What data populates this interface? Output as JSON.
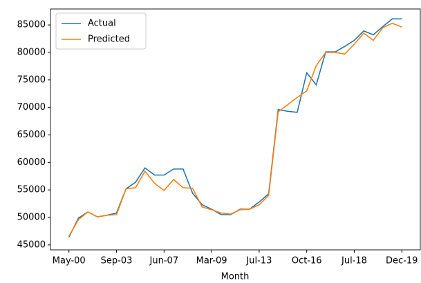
{
  "chart_data": {
    "type": "line",
    "xlabel": "Month",
    "categories": [
      "May-00",
      null,
      null,
      null,
      null,
      "Sep-03",
      null,
      null,
      null,
      null,
      "Jun-07",
      null,
      null,
      null,
      null,
      "Mar-09",
      null,
      null,
      null,
      null,
      "Jul-13",
      null,
      null,
      null,
      null,
      "Oct-16",
      null,
      null,
      null,
      null,
      "Jul-18",
      null,
      null,
      null,
      null,
      "Dec-19"
    ],
    "series": [
      {
        "name": "Actual",
        "color": "#1f77b4",
        "values": [
          46400,
          49900,
          51000,
          50100,
          50400,
          50800,
          55200,
          56400,
          59000,
          57700,
          57700,
          58800,
          58800,
          54400,
          52300,
          51500,
          50500,
          50500,
          51500,
          51500,
          52800,
          54300,
          69600,
          69300,
          69100,
          76300,
          74100,
          80100,
          80100,
          81100,
          82200,
          83900,
          83200,
          84700,
          86100,
          86100
        ]
      },
      {
        "name": "Predicted",
        "color": "#ff7f0e",
        "values": [
          46600,
          49600,
          51000,
          50100,
          50400,
          50500,
          55200,
          55400,
          58400,
          56200,
          54900,
          56900,
          55400,
          55300,
          51900,
          51400,
          50800,
          50600,
          51400,
          51500,
          52300,
          54000,
          69200,
          70500,
          71800,
          73000,
          77600,
          80000,
          80000,
          79700,
          81500,
          83500,
          82200,
          84500,
          85300,
          84600
        ]
      }
    ],
    "ylim": [
      44100,
      87900
    ],
    "yticks": [
      45000,
      50000,
      55000,
      60000,
      65000,
      70000,
      75000,
      80000,
      85000
    ],
    "legend": "upper left"
  }
}
